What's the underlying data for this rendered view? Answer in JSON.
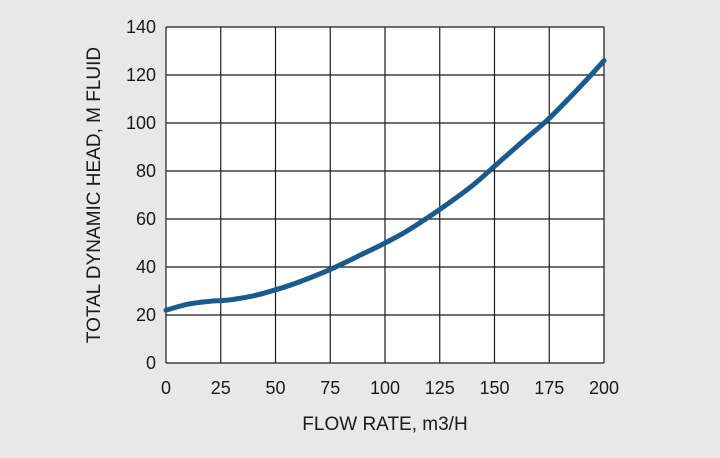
{
  "colors": {
    "background": "#e8e8e8",
    "plot_background": "#ffffff",
    "grid": "#1a1a1a",
    "curve": "#1b5a8c",
    "text": "#1a1a1a"
  },
  "chart_data": {
    "type": "line",
    "title": "",
    "xlabel": "FLOW RATE, m3/H",
    "ylabel": "TOTAL DYNAMIC HEAD, M FLUID",
    "xlim": [
      0,
      200
    ],
    "ylim": [
      0,
      140
    ],
    "x_ticks": [
      "0",
      "25",
      "50",
      "75",
      "100",
      "125",
      "150",
      "175",
      "200"
    ],
    "y_ticks": [
      "0",
      "20",
      "40",
      "60",
      "80",
      "100",
      "120",
      "140"
    ],
    "grid": true,
    "legend": "none",
    "series": [
      {
        "x": [
          0,
          10,
          20,
          25,
          30,
          40,
          50,
          60,
          75,
          90,
          100,
          110,
          125,
          140,
          150,
          165,
          175,
          190,
          200
        ],
        "values": [
          22,
          24.5,
          25.7,
          26,
          26.4,
          28,
          30.5,
          33.5,
          39,
          45.5,
          50,
          55,
          64,
          74,
          82,
          94,
          102,
          116,
          126
        ]
      }
    ]
  }
}
